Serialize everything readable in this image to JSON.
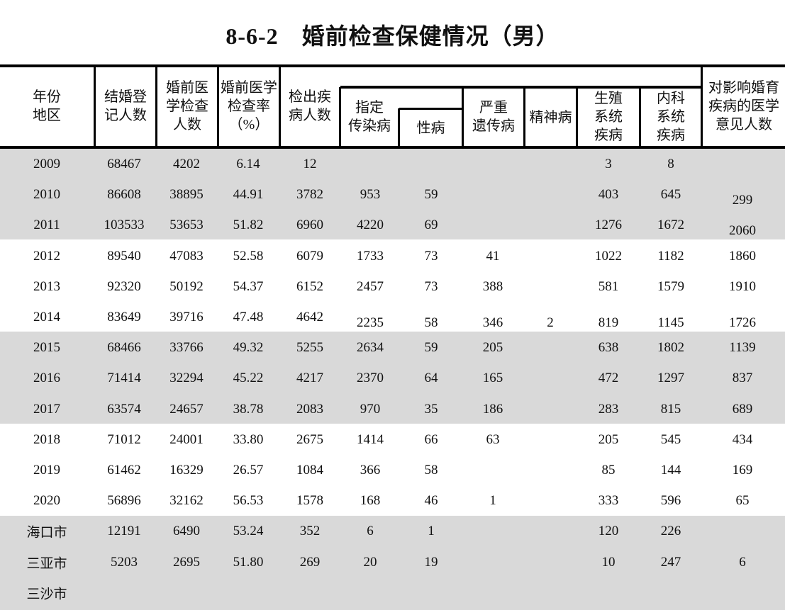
{
  "title": "8-6-2　婚前检查保健情况（男）",
  "headers": {
    "year_region": "年份\n地区",
    "marriage_registrations": "结婚登\n记人数",
    "premarital_exam_count": "婚前医\n学检查\n人数",
    "premarital_exam_rate": "婚前医学\n检查率\n（%）",
    "diseases_detected": "检出疾\n病人数",
    "designated_infectious": "指定\n传染病",
    "std": "性病",
    "severe_genetic": "严重\n遗传病",
    "mental": "精神病",
    "reproductive": "生殖\n系统\n疾病",
    "internal_medicine": "内科\n系统\n疾病",
    "medical_opinions": "对影响婚育\n疾病的医学\n意见人数"
  },
  "rows": [
    [
      "2009",
      "68467",
      "4202",
      "6.14",
      "12",
      "",
      "",
      "",
      "",
      "3",
      "8",
      ""
    ],
    [
      "2010",
      "86608",
      "38895",
      "44.91",
      "3782",
      "953",
      "59",
      "",
      "",
      "403",
      "645",
      "299"
    ],
    [
      "2011",
      "103533",
      "53653",
      "51.82",
      "6960",
      "4220",
      "69",
      "",
      "",
      "1276",
      "1672",
      "2060"
    ],
    [
      "2012",
      "89540",
      "47083",
      "52.58",
      "6079",
      "1733",
      "73",
      "41",
      "",
      "1022",
      "1182",
      "1860"
    ],
    [
      "2013",
      "92320",
      "50192",
      "54.37",
      "6152",
      "2457",
      "73",
      "388",
      "",
      "581",
      "1579",
      "1910"
    ],
    [
      "2014",
      "83649",
      "39716",
      "47.48",
      "4642",
      "2235",
      "58",
      "346",
      "2",
      "819",
      "1145",
      "1726"
    ],
    [
      "2015",
      "68466",
      "33766",
      "49.32",
      "5255",
      "2634",
      "59",
      "205",
      "",
      "638",
      "1802",
      "1139"
    ],
    [
      "2016",
      "71414",
      "32294",
      "45.22",
      "4217",
      "2370",
      "64",
      "165",
      "",
      "472",
      "1297",
      "837"
    ],
    [
      "2017",
      "63574",
      "24657",
      "38.78",
      "2083",
      "970",
      "35",
      "186",
      "",
      "283",
      "815",
      "689"
    ],
    [
      "2018",
      "71012",
      "24001",
      "33.80",
      "2675",
      "1414",
      "66",
      "63",
      "",
      "205",
      "545",
      "434"
    ],
    [
      "2019",
      "61462",
      "16329",
      "26.57",
      "1084",
      "366",
      "58",
      "",
      "",
      "85",
      "144",
      "169"
    ],
    [
      "2020",
      "56896",
      "32162",
      "56.53",
      "1578",
      "168",
      "46",
      "1",
      "",
      "333",
      "596",
      "65"
    ],
    [
      "海口市",
      "12191",
      "6490",
      "53.24",
      "352",
      "6",
      "1",
      "",
      "",
      "120",
      "226",
      ""
    ],
    [
      "三亚市",
      "5203",
      "2695",
      "51.80",
      "269",
      "20",
      "19",
      "",
      "",
      "10",
      "247",
      "6"
    ],
    [
      "三沙市",
      "",
      "",
      "",
      "",
      "",
      "",
      "",
      "",
      "",
      "",
      ""
    ]
  ],
  "colors": {
    "band": "#d9d9d9",
    "rule": "#000000"
  }
}
